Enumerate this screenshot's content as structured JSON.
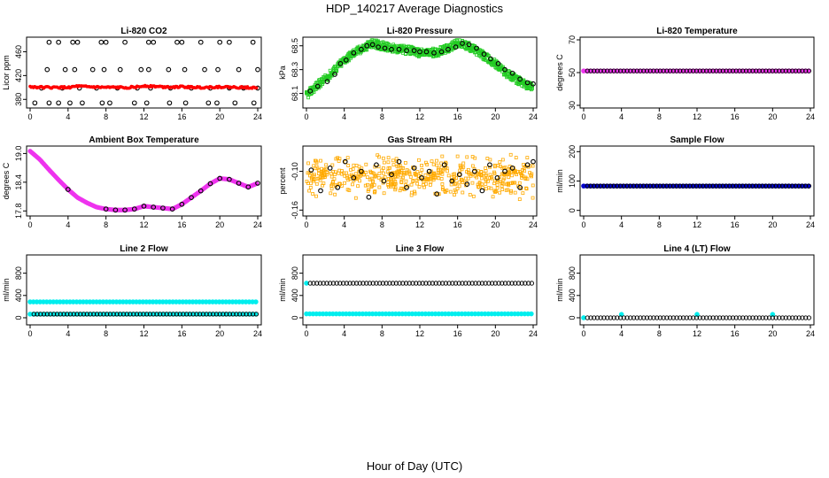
{
  "page": {
    "title": "HDP_140217  Average Diagnostics",
    "x_axis_label": "Hour of Day (UTC)"
  },
  "colors": {
    "red": "#ff0000",
    "green": "#22cc22",
    "magenta": "#ee33ee",
    "orange": "#ffaa00",
    "blue": "#0000cc",
    "cyan": "#00eeee",
    "black": "#000000"
  },
  "chart_data": [
    {
      "type": "scatter",
      "title": "Li-820 CO2",
      "ylabel": "Licor ppm",
      "xlim": [
        0,
        24
      ],
      "ylim": [
        370,
        480
      ],
      "yticks": [
        "380",
        "420",
        "460"
      ],
      "xticks": [
        "0",
        "4",
        "8",
        "12",
        "16",
        "20",
        "24"
      ],
      "series": [
        {
          "name": "cal-top",
          "color": "black",
          "style": "open",
          "x": [
            2,
            3,
            4.5,
            5,
            7.5,
            8,
            10,
            12.5,
            13,
            15.5,
            16,
            18,
            20,
            21,
            23.5
          ],
          "y": [
            476,
            476,
            476,
            476,
            476,
            476,
            476,
            476,
            476,
            476,
            476,
            476,
            476,
            476,
            476
          ]
        },
        {
          "name": "cal-mid",
          "color": "black",
          "style": "open",
          "x": [
            1.8,
            3.7,
            4.7,
            6.6,
            7.8,
            9.5,
            11.7,
            12.5,
            14.6,
            16.3,
            18.4,
            19.8,
            22,
            24
          ],
          "y": [
            430,
            430,
            430,
            430,
            430,
            430,
            430,
            430,
            430,
            430,
            430,
            430,
            430,
            430
          ]
        },
        {
          "name": "cal-low",
          "color": "black",
          "style": "open",
          "x": [
            1.2,
            3.4,
            5.2,
            7,
            9.2,
            11.3,
            12.7,
            14.8,
            17,
            19,
            21,
            22.5,
            24
          ],
          "y": [
            399,
            399,
            399,
            399,
            399,
            399,
            399,
            399,
            399,
            399,
            399,
            399,
            399
          ]
        },
        {
          "name": "cal-zero",
          "color": "black",
          "style": "open",
          "x": [
            0.5,
            2,
            3,
            4.2,
            5.5,
            7.6,
            8.4,
            11,
            12.3,
            14.7,
            16.4,
            18.8,
            19.7,
            21.6,
            23.6
          ],
          "y": [
            374,
            374,
            374,
            374,
            374,
            374,
            374,
            374,
            374,
            374,
            374,
            374,
            374,
            374,
            374
          ]
        },
        {
          "name": "ambient",
          "color": "red",
          "style": "dense",
          "x": [
            0,
            2,
            4,
            5,
            6,
            8,
            10,
            11.5,
            12,
            14,
            16,
            18,
            20,
            22,
            24
          ],
          "y": [
            401,
            400,
            400,
            402,
            401,
            400,
            400,
            401,
            403,
            401,
            401,
            400,
            401,
            400,
            400
          ]
        }
      ]
    },
    {
      "type": "scatter",
      "title": "Li-820 Pressure",
      "ylabel": "kPa",
      "xlim": [
        0,
        24
      ],
      "ylim": [
        68.0,
        68.55
      ],
      "yticks": [
        "68.1",
        "68.3",
        "68.5"
      ],
      "xticks": [
        "0",
        "4",
        "8",
        "12",
        "16",
        "20",
        "24"
      ],
      "series": [
        {
          "name": "band",
          "color": "green",
          "style": "band",
          "x": [
            0,
            1,
            2,
            3,
            4,
            5,
            6,
            7,
            8,
            9,
            10,
            11,
            12,
            13,
            14,
            15,
            16,
            17,
            18,
            19,
            20,
            21,
            22,
            23,
            24
          ],
          "y": [
            68.08,
            68.16,
            68.22,
            68.3,
            68.38,
            68.44,
            68.48,
            68.52,
            68.5,
            68.48,
            68.47,
            68.46,
            68.44,
            68.44,
            68.45,
            68.48,
            68.52,
            68.5,
            68.46,
            68.4,
            68.35,
            68.28,
            68.23,
            68.18,
            68.16
          ]
        },
        {
          "name": "means",
          "color": "black",
          "style": "open",
          "x": [
            0.4,
            1.2,
            2.2,
            3,
            3.6,
            4.2,
            5,
            5.8,
            6.4,
            7,
            7.6,
            8.3,
            9,
            9.8,
            10.6,
            11.4,
            12,
            12.7,
            13.5,
            14.3,
            15,
            15.8,
            16.5,
            17.2,
            18,
            18.8,
            19.5,
            20.3,
            21,
            21.8,
            22.6,
            23.4,
            24
          ],
          "y": [
            68.12,
            68.16,
            68.2,
            68.26,
            68.35,
            68.38,
            68.44,
            68.47,
            68.5,
            68.51,
            68.49,
            68.48,
            68.47,
            68.47,
            68.46,
            68.46,
            68.45,
            68.45,
            68.44,
            68.45,
            68.47,
            68.49,
            68.52,
            68.51,
            68.48,
            68.43,
            68.39,
            68.35,
            68.3,
            68.27,
            68.22,
            68.19,
            68.18
          ]
        }
      ]
    },
    {
      "type": "scatter",
      "title": "Li-820 Temperature",
      "ylabel": "degrees C",
      "xlim": [
        0,
        24
      ],
      "ylim": [
        30,
        70
      ],
      "yticks": [
        "30",
        "50",
        "70"
      ],
      "xticks": [
        "0",
        "4",
        "8",
        "12",
        "16",
        "20",
        "24"
      ],
      "series": [
        {
          "name": "temp",
          "color": "magenta",
          "style": "filled",
          "x": [
            0,
            24
          ],
          "y": [
            51,
            51
          ]
        },
        {
          "name": "means",
          "color": "black",
          "style": "open-row",
          "x": [
            0.4,
            24
          ],
          "y": [
            51,
            51
          ]
        }
      ]
    },
    {
      "type": "scatter",
      "title": "Ambient Box Temperature",
      "ylabel": "degrees C",
      "xlim": [
        0,
        24
      ],
      "ylim": [
        17.75,
        19.1
      ],
      "yticks": [
        "17.8",
        "18.4",
        "19.0"
      ],
      "xticks": [
        "0",
        "4",
        "8",
        "12",
        "16",
        "20",
        "24"
      ],
      "series": [
        {
          "name": "temp",
          "color": "magenta",
          "style": "curve",
          "x": [
            0,
            1,
            2,
            3,
            4,
            5,
            6,
            7,
            8,
            9,
            10,
            11,
            12,
            13,
            14,
            15,
            16,
            17,
            18,
            19,
            20,
            21,
            22,
            23,
            24
          ],
          "y": [
            19.05,
            18.88,
            18.66,
            18.45,
            18.25,
            18.08,
            17.97,
            17.88,
            17.84,
            17.82,
            17.82,
            17.84,
            17.9,
            17.88,
            17.86,
            17.84,
            17.94,
            18.08,
            18.22,
            18.37,
            18.48,
            18.46,
            18.38,
            18.3,
            18.38
          ]
        },
        {
          "name": "means",
          "color": "black",
          "style": "open",
          "x": [
            4,
            8,
            9,
            10,
            11,
            12,
            13,
            14,
            15,
            16,
            17,
            18,
            19,
            20,
            21,
            22,
            23,
            24
          ],
          "y": [
            18.25,
            17.84,
            17.82,
            17.82,
            17.84,
            17.9,
            17.88,
            17.86,
            17.84,
            17.94,
            18.08,
            18.22,
            18.37,
            18.48,
            18.46,
            18.38,
            18.3,
            18.38
          ]
        }
      ]
    },
    {
      "type": "scatter",
      "title": "Gas Stream RH",
      "ylabel": "percent",
      "xlim": [
        0,
        24
      ],
      "ylim": [
        -0.165,
        -0.065
      ],
      "yticks": [
        "-0.16",
        "-0.10"
      ],
      "xticks": [
        "0",
        "4",
        "8",
        "12",
        "16",
        "20",
        "24"
      ],
      "series": [
        {
          "name": "rh",
          "color": "orange",
          "style": "scatter",
          "x": [
            0,
            24
          ],
          "y": [
            -0.15,
            -0.075
          ]
        },
        {
          "name": "means",
          "color": "black",
          "style": "open",
          "x": [
            0.5,
            1.5,
            2.5,
            3.3,
            4.1,
            5,
            5.8,
            6.6,
            7.4,
            8.2,
            9,
            9.8,
            10.6,
            11.4,
            12.2,
            13,
            13.8,
            14.6,
            15.4,
            16.2,
            17,
            17.8,
            18.6,
            19.4,
            20.2,
            21,
            21.8,
            22.6,
            23.4,
            24
          ],
          "y": [
            -0.098,
            -0.13,
            -0.095,
            -0.125,
            -0.085,
            -0.11,
            -0.1,
            -0.14,
            -0.09,
            -0.115,
            -0.105,
            -0.085,
            -0.125,
            -0.095,
            -0.11,
            -0.1,
            -0.135,
            -0.09,
            -0.115,
            -0.105,
            -0.12,
            -0.1,
            -0.13,
            -0.09,
            -0.11,
            -0.1,
            -0.095,
            -0.125,
            -0.09,
            -0.085
          ]
        }
      ]
    },
    {
      "type": "scatter",
      "title": "Sample Flow",
      "ylabel": "ml/min",
      "xlim": [
        0,
        24
      ],
      "ylim": [
        -10,
        210
      ],
      "yticks": [
        "0",
        "100",
        "200"
      ],
      "xticks": [
        "0",
        "4",
        "8",
        "12",
        "16",
        "20",
        "24"
      ],
      "series": [
        {
          "name": "flow",
          "color": "blue",
          "style": "filled",
          "x": [
            0,
            24
          ],
          "y": [
            83,
            83
          ]
        },
        {
          "name": "means",
          "color": "black",
          "style": "open-row",
          "x": [
            0.4,
            24
          ],
          "y": [
            83,
            83
          ]
        }
      ]
    },
    {
      "type": "scatter",
      "title": "Line 2 Flow",
      "ylabel": "ml/min",
      "xlim": [
        0,
        24
      ],
      "ylim": [
        -80,
        1080
      ],
      "yticks": [
        "0",
        "400",
        "800"
      ],
      "xticks": [
        "0",
        "4",
        "8",
        "12",
        "16",
        "20",
        "24"
      ],
      "series": [
        {
          "name": "flow-high",
          "color": "cyan",
          "style": "filled",
          "x": [
            0,
            24
          ],
          "y": [
            285,
            285
          ]
        },
        {
          "name": "flow-low",
          "color": "cyan",
          "style": "filled",
          "x": [
            0,
            24
          ],
          "y": [
            65,
            65
          ]
        },
        {
          "name": "means",
          "color": "black",
          "style": "open-row",
          "x": [
            0.4,
            24
          ],
          "y": [
            65,
            65
          ]
        }
      ]
    },
    {
      "type": "scatter",
      "title": "Line 3 Flow",
      "ylabel": "ml/min",
      "xlim": [
        0,
        24
      ],
      "ylim": [
        -80,
        1080
      ],
      "yticks": [
        "0",
        "400",
        "800"
      ],
      "xticks": [
        "0",
        "4",
        "8",
        "12",
        "16",
        "20",
        "24"
      ],
      "series": [
        {
          "name": "flow-high",
          "color": "cyan",
          "style": "filled",
          "x": [
            0,
            0.3
          ],
          "y": [
            620,
            620
          ]
        },
        {
          "name": "means-high",
          "color": "black",
          "style": "open-row",
          "x": [
            0.4,
            24
          ],
          "y": [
            620,
            620
          ]
        },
        {
          "name": "flow-low",
          "color": "cyan",
          "style": "filled",
          "x": [
            0,
            24
          ],
          "y": [
            70,
            70
          ]
        }
      ]
    },
    {
      "type": "scatter",
      "title": "Line 4 (LT) Flow",
      "ylabel": "ml/min",
      "xlim": [
        0,
        24
      ],
      "ylim": [
        -80,
        1080
      ],
      "yticks": [
        "0",
        "400",
        "800"
      ],
      "xticks": [
        "0",
        "4",
        "8",
        "12",
        "16",
        "20",
        "24"
      ],
      "series": [
        {
          "name": "flow",
          "color": "cyan",
          "style": "filled",
          "x": [
            0,
            4,
            12,
            20
          ],
          "y": [
            0,
            60,
            60,
            60
          ]
        },
        {
          "name": "means",
          "color": "black",
          "style": "open-row",
          "x": [
            0.4,
            24
          ],
          "y": [
            0,
            0
          ]
        }
      ]
    }
  ]
}
